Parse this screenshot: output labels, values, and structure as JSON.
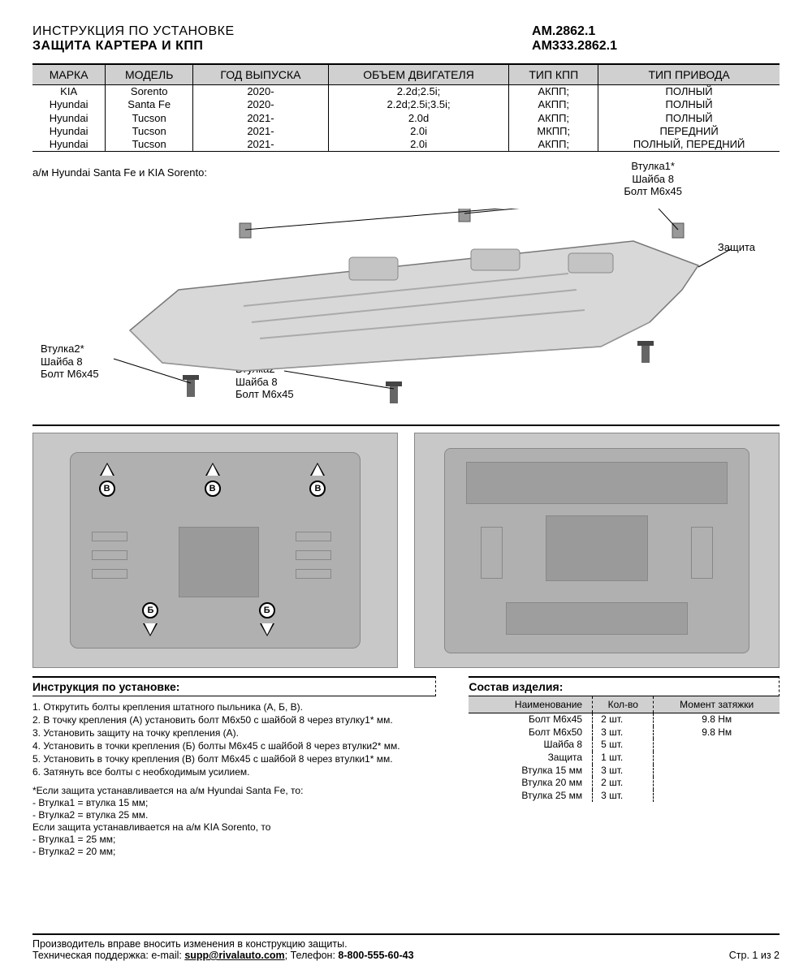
{
  "header": {
    "line1": "ИНСТРУКЦИЯ ПО УСТАНОВКЕ",
    "line2": "ЗАЩИТА КАРТЕРА И КПП",
    "code1": "AM.2862.1",
    "code2": "AM333.2862.1"
  },
  "spec_table": {
    "columns": [
      "МАРКА",
      "МОДЕЛЬ",
      "ГОД ВЫПУСКА",
      "ОБЪЕМ ДВИГАТЕЛЯ",
      "ТИП КПП",
      "ТИП ПРИВОДА"
    ],
    "rows": [
      [
        "KIA",
        "Sorento",
        "2020-",
        "2.2d;2.5i;",
        "АКПП;",
        "ПОЛНЫЙ"
      ],
      [
        "Hyundai",
        "Santa Fe",
        "2020-",
        "2.2d;2.5i;3.5i;",
        "АКПП;",
        "ПОЛНЫЙ"
      ],
      [
        "Hyundai",
        "Tucson",
        "2021-",
        "2.0d",
        "АКПП;",
        "ПОЛНЫЙ"
      ],
      [
        "Hyundai",
        "Tucson",
        "2021-",
        "2.0i",
        "МКПП;",
        "ПЕРЕДНИЙ"
      ],
      [
        "Hyundai",
        "Tucson",
        "2021-",
        "2.0i",
        "АКПП;",
        "ПОЛНЫЙ, ПЕРЕДНИЙ"
      ]
    ]
  },
  "diagram": {
    "subtitle": "а/м Hyundai Santa Fe и KIA Sorento:",
    "label_top": "Втулка1*\nШайба 8\nБолт М6х45",
    "label_right": "Защита",
    "label_bl": "Втулка2*\nШайба 8\nБолт М6х45",
    "label_bc": "Втулка2*\nШайба 8\nБолт М6х45"
  },
  "mid_badges": {
    "B": "В",
    "B2": "Б"
  },
  "instructions": {
    "title": "Инструкция по установке:",
    "steps": [
      "1. Открутить болты крепления штатного пыльника (А, Б, В).",
      "2. В точку крепления (А) установить болт М6х50 с шайбой 8 через втулку1* мм.",
      "3. Установить защиту на точку крепления (А).",
      "4. Установить в точки крепления (Б) болты М6х45 с шайбой 8 через втулки2* мм.",
      "5. Установить в точку крепления (В) болт М6х45 с шайбой 8 через втулки1* мм.",
      "6. Затянуть все болты с необходимым усилием."
    ],
    "notes": [
      "*Если защита устанавливается на а/м Hyundai Santa Fe, то:",
      " - Втулка1 = втулка 15 мм;",
      " - Втулка2 = втулка 25 мм.",
      "Если защита устанавливается на а/м KIA Sorento, то",
      " - Втулка1 = 25 мм;",
      " - Втулка2 = 20 мм;"
    ]
  },
  "composition": {
    "title": "Состав изделия:",
    "columns": [
      "Наименование",
      "Кол-во",
      "Момент затяжки"
    ],
    "rows": [
      [
        "Болт М6х45",
        "2 шт.",
        "9.8 Нм"
      ],
      [
        "Болт М6х50",
        "3 шт.",
        "9.8 Нм"
      ],
      [
        "Шайба 8",
        "5 шт.",
        ""
      ],
      [
        "Защита",
        "1 шт.",
        ""
      ],
      [
        "Втулка 15 мм",
        "3 шт.",
        ""
      ],
      [
        "Втулка 20 мм",
        "2 шт.",
        ""
      ],
      [
        "Втулка 25 мм",
        "3 шт.",
        ""
      ]
    ]
  },
  "footer": {
    "line1": "Производитель вправе вносить изменения в конструкцию защиты.",
    "line2_prefix": "Техническая поддержка:  e-mail: ",
    "email": "supp@rivalauto.com",
    "line2_mid": "; Телефон: ",
    "phone": "8-800-555-60-43",
    "page": "Стр. 1 из 2"
  }
}
